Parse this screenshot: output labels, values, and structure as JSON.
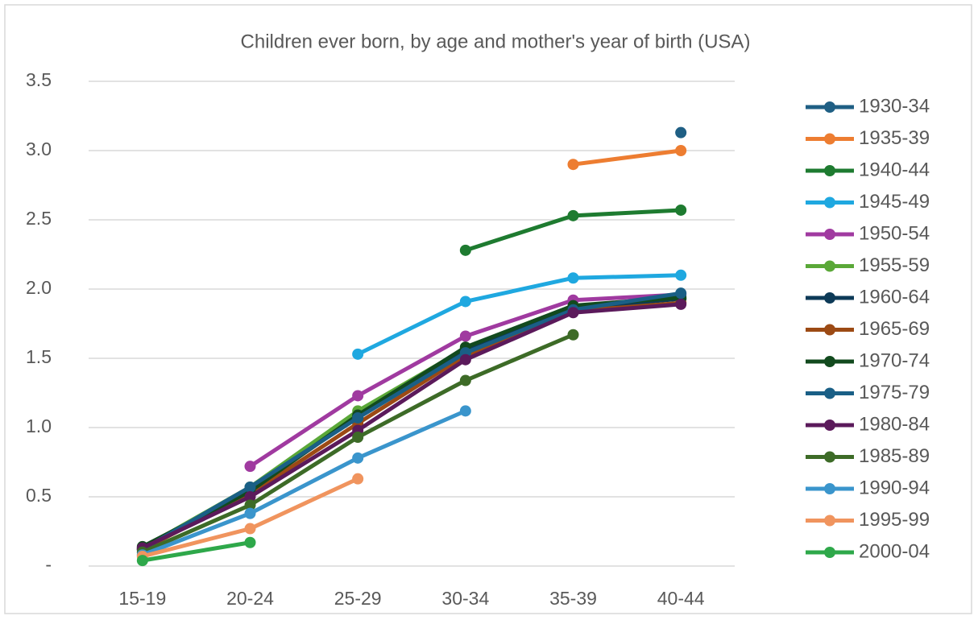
{
  "chart_data": {
    "type": "line",
    "title": "Children ever born, by age and mother's year of birth (USA)",
    "categories": [
      "15-19",
      "20-24",
      "25-29",
      "30-34",
      "35-39",
      "40-44"
    ],
    "ylim": [
      0,
      3.5
    ],
    "yticks": [
      {
        "value": 0,
        "label": "-"
      },
      0.5,
      {
        "value": 1,
        "label": "1.0"
      },
      1.5,
      {
        "value": 2,
        "label": "2.0"
      },
      2.5,
      {
        "value": 3,
        "label": "3.0"
      },
      3.5
    ],
    "grid": true,
    "legend": "right",
    "series": [
      {
        "name": "1930-34",
        "color": "#1f5f84",
        "values": [
          null,
          null,
          null,
          null,
          null,
          3.13
        ]
      },
      {
        "name": "1935-39",
        "color": "#ed7d31",
        "values": [
          null,
          null,
          null,
          null,
          2.9,
          3.0
        ]
      },
      {
        "name": "1940-44",
        "color": "#1e7b30",
        "values": [
          null,
          null,
          null,
          2.28,
          2.53,
          2.57
        ]
      },
      {
        "name": "1945-49",
        "color": "#1fa8e0",
        "values": [
          null,
          null,
          1.53,
          1.91,
          2.08,
          2.1
        ]
      },
      {
        "name": "1950-54",
        "color": "#a03aa0",
        "values": [
          null,
          0.72,
          1.23,
          1.66,
          1.92,
          1.96
        ]
      },
      {
        "name": "1955-59",
        "color": "#5aa838",
        "values": [
          0.13,
          0.57,
          1.12,
          1.57,
          1.87,
          1.93
        ]
      },
      {
        "name": "1960-64",
        "color": "#0d3a57",
        "values": [
          0.12,
          0.55,
          1.08,
          1.57,
          1.86,
          1.93
        ]
      },
      {
        "name": "1965-69",
        "color": "#9c4a14",
        "values": [
          0.12,
          0.52,
          1.03,
          1.52,
          1.84,
          1.9
        ]
      },
      {
        "name": "1970-74",
        "color": "#124a1e",
        "values": [
          0.14,
          0.54,
          1.09,
          1.58,
          1.88,
          1.94
        ]
      },
      {
        "name": "1975-79",
        "color": "#1a5f86",
        "values": [
          0.12,
          0.57,
          1.07,
          1.54,
          1.85,
          1.97
        ]
      },
      {
        "name": "1980-84",
        "color": "#5b1a5b",
        "values": [
          0.13,
          0.5,
          0.98,
          1.49,
          1.83,
          1.89
        ]
      },
      {
        "name": "1985-89",
        "color": "#3d6b27",
        "values": [
          0.1,
          0.44,
          0.93,
          1.34,
          1.67,
          null
        ]
      },
      {
        "name": "1990-94",
        "color": "#3a95cc",
        "values": [
          0.08,
          0.38,
          0.78,
          1.12,
          null,
          null
        ]
      },
      {
        "name": "1995-99",
        "color": "#f0945e",
        "values": [
          0.07,
          0.27,
          0.63,
          null,
          null,
          null
        ]
      },
      {
        "name": "2000-04",
        "color": "#2ea84a",
        "values": [
          0.04,
          0.17,
          null,
          null,
          null,
          null
        ]
      }
    ]
  }
}
